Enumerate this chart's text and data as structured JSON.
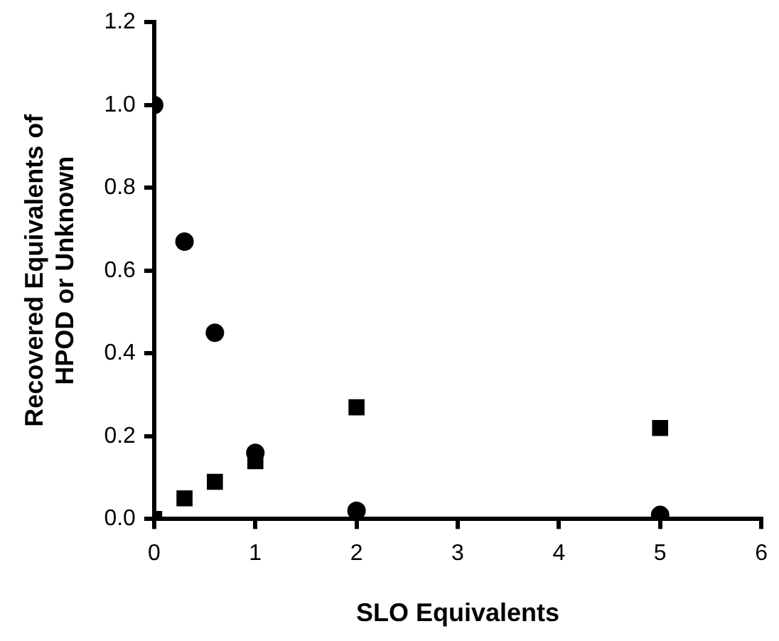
{
  "chart_data": {
    "type": "scatter",
    "xlabel": "SLO Equivalents",
    "ylabel": "Recovered Equivalents of HPOD or Unknown",
    "x": [
      0,
      0.3,
      0.6,
      1,
      2,
      5
    ],
    "series": [
      {
        "color": "#000000",
        "marker": "circle",
        "values": [
          1.0,
          0.67,
          0.45,
          0.16,
          0.02,
          0.01
        ]
      },
      {
        "color": "#000000",
        "marker": "square",
        "values": [
          0,
          0.05,
          0.09,
          0.14,
          0.27,
          0.22
        ]
      }
    ],
    "xlim": [
      0,
      6
    ],
    "xticks": [
      0,
      1,
      2,
      3,
      4,
      5,
      6
    ],
    "ylim": [
      0,
      1.2
    ],
    "yticks": [
      {
        "value": 0,
        "label": "0.0"
      },
      {
        "value": 0.2,
        "label": "0.2"
      },
      {
        "value": 0.4,
        "label": "0.4"
      },
      {
        "value": 0.6,
        "label": "0.6"
      },
      {
        "value": 0.8,
        "label": "0.8"
      },
      {
        "value": 1,
        "label": "1.0"
      },
      {
        "value": 1.2,
        "label": "1.2"
      }
    ],
    "grid": false,
    "legend": false
  }
}
